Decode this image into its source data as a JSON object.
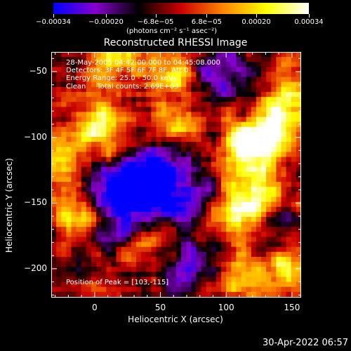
{
  "colorbar": {
    "colors": [
      "#0000ff",
      "#8800cc",
      "#000000",
      "#cc0000",
      "#ff8800",
      "#ffff00",
      "#ffffff"
    ],
    "tick_labels": [
      "-0.00034",
      "-0.00020",
      "-6.8e-05",
      "6.8e-05",
      "0.00020",
      "0.00034"
    ],
    "units": "(photons cm⁻² s⁻¹ asec⁻²)"
  },
  "title": "Reconstructed RHESSI Image",
  "info": {
    "time_range": "28-May-2005 04:42:00.000 to 04:45:08.000",
    "detectors": "Detectors: 3F 4F 5F 6F 7F 8F, Att 0",
    "energy": "Energy Range: 25.0 - 50.0 keV",
    "clean": "Clean     Total counts: 2.69E+03",
    "peak": "Position of Peak = [103,-115]"
  },
  "chart_data": {
    "type": "heatmap",
    "title": "Reconstructed RHESSI Image",
    "xlabel": "Heliocentric X (arcsec)",
    "ylabel": "Heliocentric Y (arcsec)",
    "xlim": [
      -33,
      157
    ],
    "ylim": [
      -222,
      -35
    ],
    "x_ticks": [
      0,
      50,
      100,
      150
    ],
    "y_ticks": [
      -50,
      -100,
      -150,
      -200
    ],
    "x_tick_labels": [
      "0",
      "50",
      "100",
      "150"
    ],
    "y_tick_labels": [
      "-50",
      "-100",
      "-150",
      "-200"
    ],
    "colorbar_range": [
      -0.00034,
      0.00034
    ],
    "peak_position": [
      103,
      -115
    ],
    "bright_regions": [
      {
        "x": 115,
        "y": -110,
        "level": 1.0
      },
      {
        "x": 135,
        "y": -95,
        "level": 0.85
      },
      {
        "x": 150,
        "y": -70,
        "level": 0.7
      },
      {
        "x": 110,
        "y": -160,
        "level": 0.75
      },
      {
        "x": 125,
        "y": -145,
        "level": 0.8
      },
      {
        "x": 60,
        "y": -95,
        "level": 0.75
      },
      {
        "x": 5,
        "y": -95,
        "level": 0.85
      },
      {
        "x": -15,
        "y": -155,
        "level": 0.7
      },
      {
        "x": 15,
        "y": -40,
        "level": 0.7
      },
      {
        "x": -25,
        "y": -110,
        "level": 0.6
      },
      {
        "x": 60,
        "y": -55,
        "level": 0.6
      },
      {
        "x": 145,
        "y": -200,
        "level": 0.7
      },
      {
        "x": 110,
        "y": -205,
        "level": 0.55
      },
      {
        "x": 40,
        "y": -180,
        "level": 0.5
      }
    ],
    "dark_regions": [
      {
        "x": 40,
        "y": -135,
        "level": -1.0
      },
      {
        "x": 10,
        "y": -135,
        "level": -0.8
      },
      {
        "x": 65,
        "y": -150,
        "level": -0.8
      },
      {
        "x": 25,
        "y": -165,
        "level": -0.7
      },
      {
        "x": 55,
        "y": -115,
        "level": -0.7
      },
      {
        "x": 70,
        "y": -200,
        "level": -0.6
      },
      {
        "x": 95,
        "y": -55,
        "level": -0.6
      },
      {
        "x": 135,
        "y": -165,
        "level": -0.5
      }
    ]
  },
  "date_stamp": "30-Apr-2022 06:57"
}
